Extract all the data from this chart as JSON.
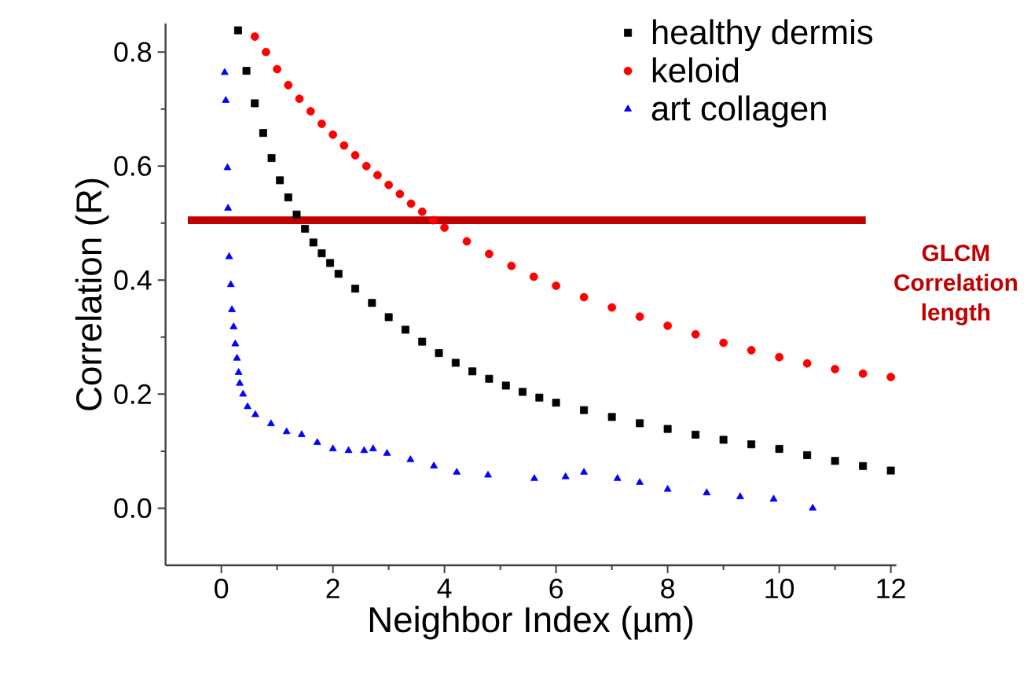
{
  "chart_data": {
    "type": "scatter",
    "xlabel": "Neighbor Index (µm)",
    "ylabel": "Correlation (R)",
    "xlim": [
      -1,
      12.1
    ],
    "ylim": [
      -0.1,
      0.85
    ],
    "xticks": [
      0,
      2,
      4,
      6,
      8,
      10,
      12
    ],
    "yticks": [
      {
        "value": 0,
        "label": "0.0"
      },
      0.2,
      0.4,
      0.6,
      0.8
    ],
    "legend": "top right",
    "grid": false,
    "annotations": [
      "GLCM Correlation length"
    ],
    "series": [
      {
        "name": "healthy dermis",
        "color": "#000000",
        "marker": "square",
        "x": [
          0.3,
          0.45,
          0.6,
          0.75,
          0.9,
          1.05,
          1.2,
          1.35,
          1.5,
          1.65,
          1.8,
          1.95,
          2.1,
          2.4,
          2.7,
          3.0,
          3.3,
          3.6,
          3.9,
          4.2,
          4.5,
          4.8,
          5.1,
          5.4,
          5.7,
          6.0,
          6.5,
          7.0,
          7.5,
          8.0,
          8.5,
          9.0,
          9.5,
          10.0,
          10.5,
          11.0,
          11.5,
          12.0
        ],
        "values": [
          0.838,
          0.767,
          0.71,
          0.658,
          0.614,
          0.575,
          0.545,
          0.515,
          0.49,
          0.466,
          0.447,
          0.43,
          0.411,
          0.385,
          0.36,
          0.335,
          0.313,
          0.292,
          0.272,
          0.255,
          0.24,
          0.227,
          0.215,
          0.204,
          0.194,
          0.185,
          0.172,
          0.16,
          0.149,
          0.139,
          0.129,
          0.12,
          0.112,
          0.104,
          0.093,
          0.083,
          0.074,
          0.066
        ]
      },
      {
        "name": "keloid",
        "color": "#ff0000",
        "marker": "circle",
        "x": [
          0.6,
          0.8,
          1.0,
          1.2,
          1.4,
          1.6,
          1.8,
          2.0,
          2.2,
          2.4,
          2.6,
          2.8,
          3.0,
          3.2,
          3.4,
          3.6,
          3.8,
          4.0,
          4.4,
          4.8,
          5.2,
          5.6,
          6.0,
          6.5,
          7.0,
          7.5,
          8.0,
          8.5,
          9.0,
          9.5,
          10.0,
          10.5,
          11.0,
          11.5,
          12.0
        ],
        "values": [
          0.827,
          0.8,
          0.77,
          0.742,
          0.718,
          0.696,
          0.674,
          0.655,
          0.636,
          0.619,
          0.6,
          0.584,
          0.567,
          0.551,
          0.534,
          0.52,
          0.505,
          0.492,
          0.468,
          0.446,
          0.425,
          0.406,
          0.39,
          0.37,
          0.352,
          0.336,
          0.32,
          0.305,
          0.29,
          0.277,
          0.265,
          0.254,
          0.244,
          0.236,
          0.23
        ]
      },
      {
        "name": "art collagen",
        "color": "#0000ff",
        "marker": "triangle",
        "x": [
          0.06,
          0.08,
          0.11,
          0.12,
          0.14,
          0.17,
          0.19,
          0.22,
          0.25,
          0.28,
          0.31,
          0.33,
          0.39,
          0.47,
          0.61,
          0.89,
          1.17,
          1.44,
          1.72,
          2.0,
          2.28,
          2.56,
          2.72,
          2.97,
          3.39,
          3.81,
          4.22,
          4.78,
          5.61,
          6.17,
          6.5,
          7.1,
          7.5,
          8.0,
          8.7,
          9.3,
          9.9,
          10.6
        ],
        "values": [
          0.764,
          0.715,
          0.597,
          0.526,
          0.441,
          0.392,
          0.348,
          0.318,
          0.288,
          0.263,
          0.238,
          0.219,
          0.2,
          0.178,
          0.164,
          0.148,
          0.134,
          0.129,
          0.115,
          0.104,
          0.101,
          0.101,
          0.104,
          0.096,
          0.085,
          0.074,
          0.063,
          0.058,
          0.052,
          0.055,
          0.063,
          0.052,
          0.045,
          0.033,
          0.027,
          0.02,
          0.016,
          0.0
        ]
      },
      {
        "type": "line",
        "color": "#c00000",
        "marker": "none",
        "x": [
          -0.6,
          11.55
        ],
        "values": [
          0.505,
          0.505
        ]
      }
    ]
  }
}
